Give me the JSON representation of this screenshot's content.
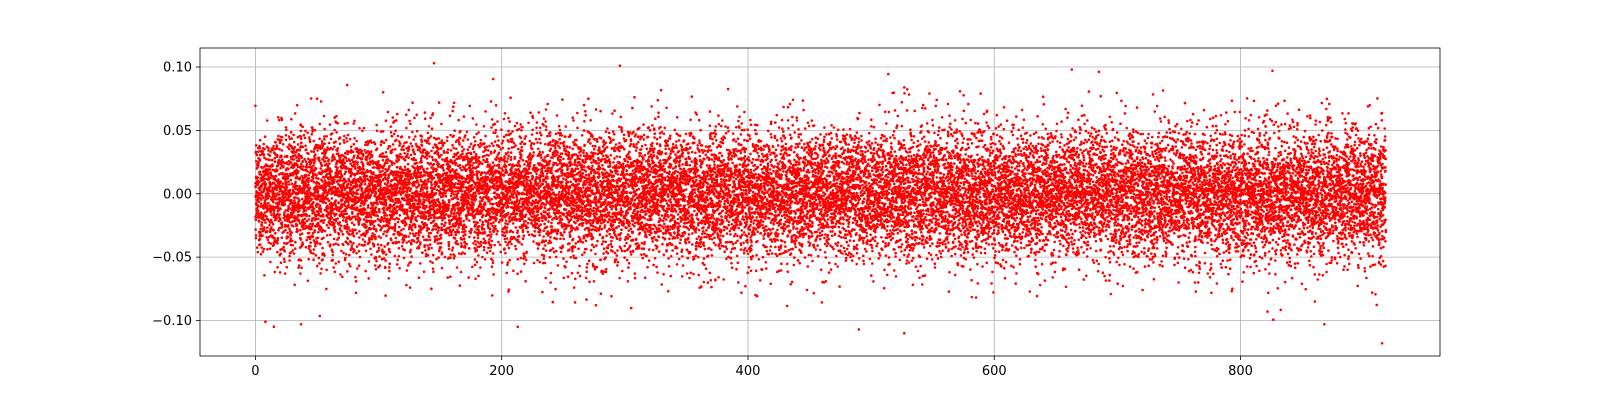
{
  "chart_data": {
    "type": "scatter",
    "title": "",
    "xlabel": "",
    "ylabel": "",
    "xlim": [
      -45,
      962
    ],
    "ylim": [
      -0.128,
      0.115
    ],
    "xticks": [
      0,
      200,
      400,
      600,
      800
    ],
    "xtick_labels": [
      "0",
      "200",
      "400",
      "600",
      "800"
    ],
    "yticks": [
      -0.1,
      -0.05,
      0.0,
      0.05,
      0.1
    ],
    "ytick_labels": [
      "−0.10",
      "−0.05",
      "0.00",
      "0.05",
      "0.10"
    ],
    "grid": true,
    "legend": "none",
    "series": [
      {
        "color": "#ff0000",
        "marker": "dot",
        "x_range": [
          0,
          918
        ],
        "point_count": 22000,
        "distribution": "dense band centered on 0.00, mostly within ±0.02, sparser scatter out to about ±0.10",
        "mean": 0.0,
        "std": 0.025,
        "min": -0.118,
        "max": 0.103,
        "notable_points": [
          {
            "x": 145,
            "y": 0.103
          },
          {
            "x": 296,
            "y": 0.101
          },
          {
            "x": 663,
            "y": 0.098
          },
          {
            "x": 826,
            "y": 0.097
          },
          {
            "x": 37,
            "y": -0.103
          },
          {
            "x": 213,
            "y": -0.105
          },
          {
            "x": 490,
            "y": -0.107
          },
          {
            "x": 527,
            "y": -0.11
          },
          {
            "x": 868,
            "y": -0.103
          },
          {
            "x": 915,
            "y": -0.118
          }
        ]
      }
    ]
  }
}
